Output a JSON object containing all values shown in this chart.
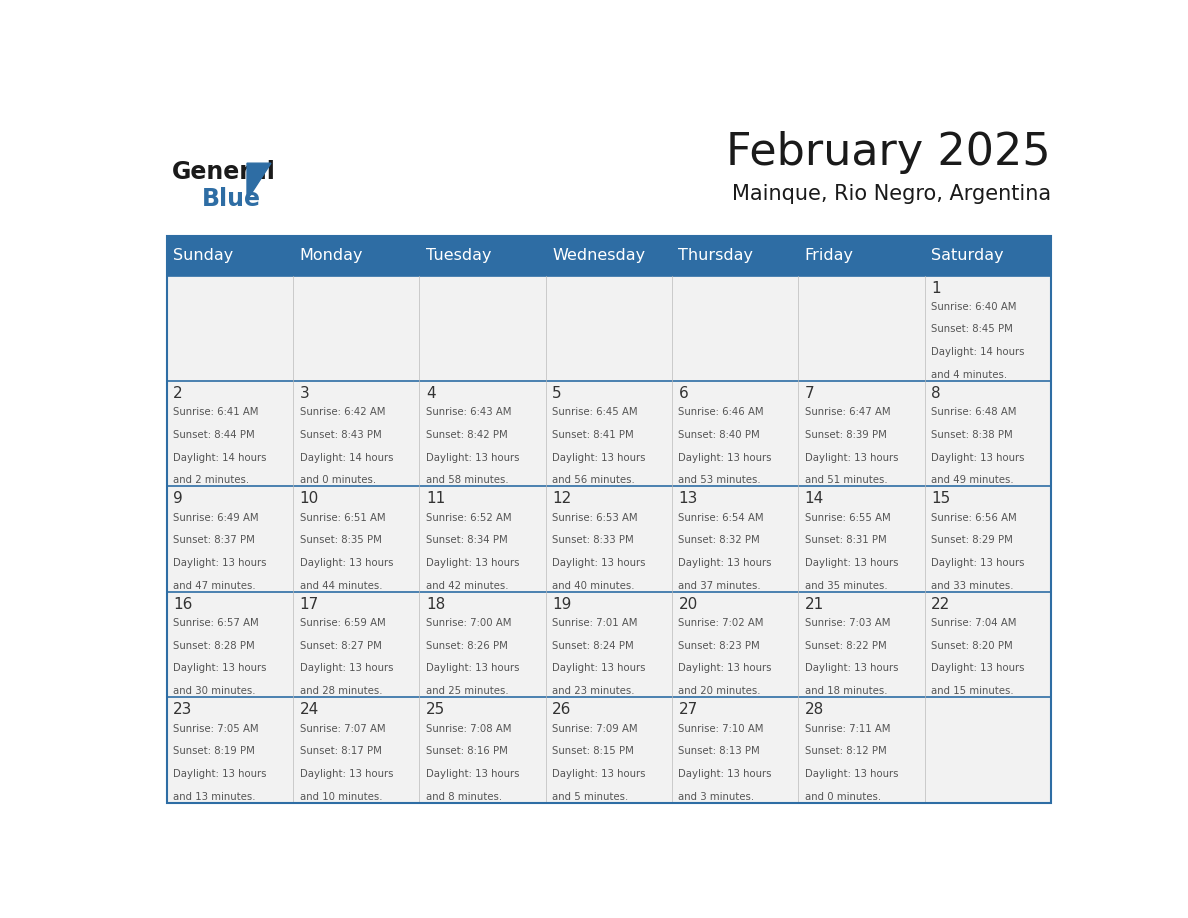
{
  "title": "February 2025",
  "subtitle": "Mainque, Rio Negro, Argentina",
  "header_bg": "#2E6DA4",
  "header_text": "#FFFFFF",
  "cell_bg": "#F2F2F2",
  "border_color": "#2E6DA4",
  "day_headers": [
    "Sunday",
    "Monday",
    "Tuesday",
    "Wednesday",
    "Thursday",
    "Friday",
    "Saturday"
  ],
  "days": [
    {
      "day": 1,
      "col": 6,
      "row": 0,
      "sunrise": "6:40 AM",
      "sunset": "8:45 PM",
      "daylight": "14 hours and 4 minutes."
    },
    {
      "day": 2,
      "col": 0,
      "row": 1,
      "sunrise": "6:41 AM",
      "sunset": "8:44 PM",
      "daylight": "14 hours and 2 minutes."
    },
    {
      "day": 3,
      "col": 1,
      "row": 1,
      "sunrise": "6:42 AM",
      "sunset": "8:43 PM",
      "daylight": "14 hours and 0 minutes."
    },
    {
      "day": 4,
      "col": 2,
      "row": 1,
      "sunrise": "6:43 AM",
      "sunset": "8:42 PM",
      "daylight": "13 hours and 58 minutes."
    },
    {
      "day": 5,
      "col": 3,
      "row": 1,
      "sunrise": "6:45 AM",
      "sunset": "8:41 PM",
      "daylight": "13 hours and 56 minutes."
    },
    {
      "day": 6,
      "col": 4,
      "row": 1,
      "sunrise": "6:46 AM",
      "sunset": "8:40 PM",
      "daylight": "13 hours and 53 minutes."
    },
    {
      "day": 7,
      "col": 5,
      "row": 1,
      "sunrise": "6:47 AM",
      "sunset": "8:39 PM",
      "daylight": "13 hours and 51 minutes."
    },
    {
      "day": 8,
      "col": 6,
      "row": 1,
      "sunrise": "6:48 AM",
      "sunset": "8:38 PM",
      "daylight": "13 hours and 49 minutes."
    },
    {
      "day": 9,
      "col": 0,
      "row": 2,
      "sunrise": "6:49 AM",
      "sunset": "8:37 PM",
      "daylight": "13 hours and 47 minutes."
    },
    {
      "day": 10,
      "col": 1,
      "row": 2,
      "sunrise": "6:51 AM",
      "sunset": "8:35 PM",
      "daylight": "13 hours and 44 minutes."
    },
    {
      "day": 11,
      "col": 2,
      "row": 2,
      "sunrise": "6:52 AM",
      "sunset": "8:34 PM",
      "daylight": "13 hours and 42 minutes."
    },
    {
      "day": 12,
      "col": 3,
      "row": 2,
      "sunrise": "6:53 AM",
      "sunset": "8:33 PM",
      "daylight": "13 hours and 40 minutes."
    },
    {
      "day": 13,
      "col": 4,
      "row": 2,
      "sunrise": "6:54 AM",
      "sunset": "8:32 PM",
      "daylight": "13 hours and 37 minutes."
    },
    {
      "day": 14,
      "col": 5,
      "row": 2,
      "sunrise": "6:55 AM",
      "sunset": "8:31 PM",
      "daylight": "13 hours and 35 minutes."
    },
    {
      "day": 15,
      "col": 6,
      "row": 2,
      "sunrise": "6:56 AM",
      "sunset": "8:29 PM",
      "daylight": "13 hours and 33 minutes."
    },
    {
      "day": 16,
      "col": 0,
      "row": 3,
      "sunrise": "6:57 AM",
      "sunset": "8:28 PM",
      "daylight": "13 hours and 30 minutes."
    },
    {
      "day": 17,
      "col": 1,
      "row": 3,
      "sunrise": "6:59 AM",
      "sunset": "8:27 PM",
      "daylight": "13 hours and 28 minutes."
    },
    {
      "day": 18,
      "col": 2,
      "row": 3,
      "sunrise": "7:00 AM",
      "sunset": "8:26 PM",
      "daylight": "13 hours and 25 minutes."
    },
    {
      "day": 19,
      "col": 3,
      "row": 3,
      "sunrise": "7:01 AM",
      "sunset": "8:24 PM",
      "daylight": "13 hours and 23 minutes."
    },
    {
      "day": 20,
      "col": 4,
      "row": 3,
      "sunrise": "7:02 AM",
      "sunset": "8:23 PM",
      "daylight": "13 hours and 20 minutes."
    },
    {
      "day": 21,
      "col": 5,
      "row": 3,
      "sunrise": "7:03 AM",
      "sunset": "8:22 PM",
      "daylight": "13 hours and 18 minutes."
    },
    {
      "day": 22,
      "col": 6,
      "row": 3,
      "sunrise": "7:04 AM",
      "sunset": "8:20 PM",
      "daylight": "13 hours and 15 minutes."
    },
    {
      "day": 23,
      "col": 0,
      "row": 4,
      "sunrise": "7:05 AM",
      "sunset": "8:19 PM",
      "daylight": "13 hours and 13 minutes."
    },
    {
      "day": 24,
      "col": 1,
      "row": 4,
      "sunrise": "7:07 AM",
      "sunset": "8:17 PM",
      "daylight": "13 hours and 10 minutes."
    },
    {
      "day": 25,
      "col": 2,
      "row": 4,
      "sunrise": "7:08 AM",
      "sunset": "8:16 PM",
      "daylight": "13 hours and 8 minutes."
    },
    {
      "day": 26,
      "col": 3,
      "row": 4,
      "sunrise": "7:09 AM",
      "sunset": "8:15 PM",
      "daylight": "13 hours and 5 minutes."
    },
    {
      "day": 27,
      "col": 4,
      "row": 4,
      "sunrise": "7:10 AM",
      "sunset": "8:13 PM",
      "daylight": "13 hours and 3 minutes."
    },
    {
      "day": 28,
      "col": 5,
      "row": 4,
      "sunrise": "7:11 AM",
      "sunset": "8:12 PM",
      "daylight": "13 hours and 0 minutes."
    }
  ]
}
